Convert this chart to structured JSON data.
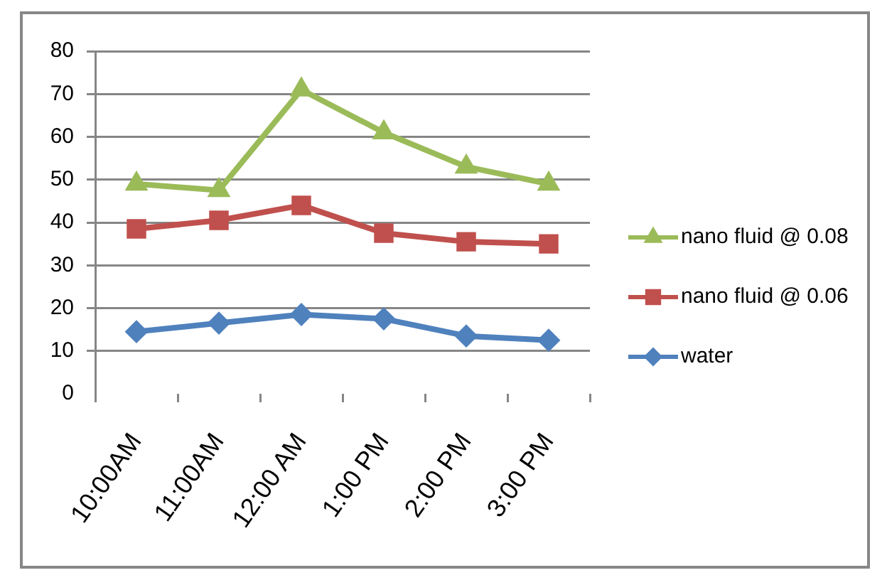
{
  "chart_data": {
    "type": "line",
    "categories": [
      "10:00AM",
      "11:00AM",
      "12:00 AM",
      "1:00 PM",
      "2:00 PM",
      "3:00 PM"
    ],
    "series": [
      {
        "name": "nano fluid @ 0.08",
        "color": "#9bbb59",
        "marker": "triangle",
        "values": [
          49,
          47.5,
          71,
          61,
          53,
          49
        ]
      },
      {
        "name": "nano fluid @ 0.06",
        "color": "#c0504d",
        "marker": "square",
        "values": [
          38.5,
          40.5,
          44,
          37.5,
          35.5,
          35
        ]
      },
      {
        "name": "water",
        "color": "#4f81bd",
        "marker": "diamond",
        "values": [
          14.5,
          16.5,
          18.5,
          17.5,
          13.5,
          12.5
        ]
      }
    ],
    "ylim": [
      0,
      80
    ],
    "yticks": [
      0,
      10,
      20,
      30,
      40,
      50,
      60,
      70,
      80
    ],
    "grid": "y",
    "legend": "right"
  }
}
